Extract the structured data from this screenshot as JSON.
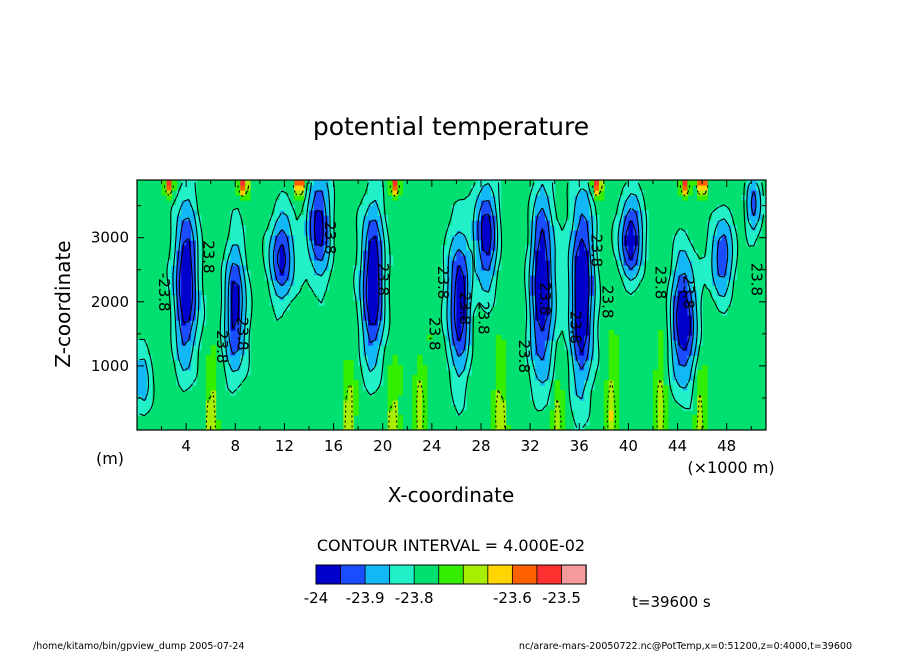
{
  "chart_data": {
    "type": "heatmap",
    "title": "potential temperature",
    "xlabel": "X-coordinate",
    "ylabel": "Z-coordinate",
    "x_unit": "(×1000 m)",
    "y_unit": "(m)",
    "xlim": [
      0,
      51.2
    ],
    "ylim": [
      0,
      3900
    ],
    "x_ticks": [
      "4",
      "8",
      "12",
      "16",
      "20",
      "24",
      "28",
      "32",
      "36",
      "40",
      "44",
      "48"
    ],
    "x_tick_values": [
      4,
      8,
      12,
      16,
      20,
      24,
      28,
      32,
      36,
      40,
      44,
      48
    ],
    "y_ticks": [
      "1000",
      "2000",
      "3000"
    ],
    "y_tick_values": [
      1000,
      2000,
      3000
    ],
    "contour_interval_text": "CONTOUR INTERVAL = 4.000E-02",
    "contour_labels": [
      {
        "x": 1.8,
        "z": 2150,
        "text": "-23.8"
      },
      {
        "x": 5.4,
        "z": 2700,
        "text": "23.8"
      },
      {
        "x": 6.5,
        "z": 1300,
        "text": "23.8"
      },
      {
        "x": 8.2,
        "z": 1500,
        "text": "23.8"
      },
      {
        "x": 15.3,
        "z": 3000,
        "text": "23.8"
      },
      {
        "x": 19.6,
        "z": 2350,
        "text": "23.8"
      },
      {
        "x": 23.8,
        "z": 1500,
        "text": "23.8"
      },
      {
        "x": 24.5,
        "z": 2300,
        "text": "23.8"
      },
      {
        "x": 26.3,
        "z": 1900,
        "text": "23.8"
      },
      {
        "x": 27.8,
        "z": 1750,
        "text": "23.8"
      },
      {
        "x": 31.1,
        "z": 1150,
        "text": "23.8"
      },
      {
        "x": 32.8,
        "z": 2050,
        "text": "23.8"
      },
      {
        "x": 35.3,
        "z": 1600,
        "text": "23.8"
      },
      {
        "x": 37.0,
        "z": 2800,
        "text": "23.8"
      },
      {
        "x": 37.9,
        "z": 2000,
        "text": "23.8"
      },
      {
        "x": 42.2,
        "z": 2300,
        "text": "23.8"
      },
      {
        "x": 44.5,
        "z": 2150,
        "text": "23.8"
      },
      {
        "x": 50.0,
        "z": 2350,
        "text": "23.8"
      }
    ],
    "colorbar": {
      "colors": [
        "#0000cc",
        "#1a4dff",
        "#12b8f5",
        "#22f0c8",
        "#00e070",
        "#33ee00",
        "#a8ee00",
        "#ffd400",
        "#ff6000",
        "#ff3030",
        "#f59a9a"
      ],
      "labels": [
        "-24",
        "-23.9",
        "-23.8",
        "-23.6",
        "-23.5"
      ],
      "label_positions": [
        0,
        2,
        4,
        8,
        10
      ]
    },
    "time_label": "t=39600 s"
  },
  "footer": {
    "left": "/home/kitamo/bin/gpview_dump   2005-07-24",
    "right": "nc/arare-mars-20050722.nc@PotTemp,x=0:51200,z=0:4000,t=39600"
  }
}
